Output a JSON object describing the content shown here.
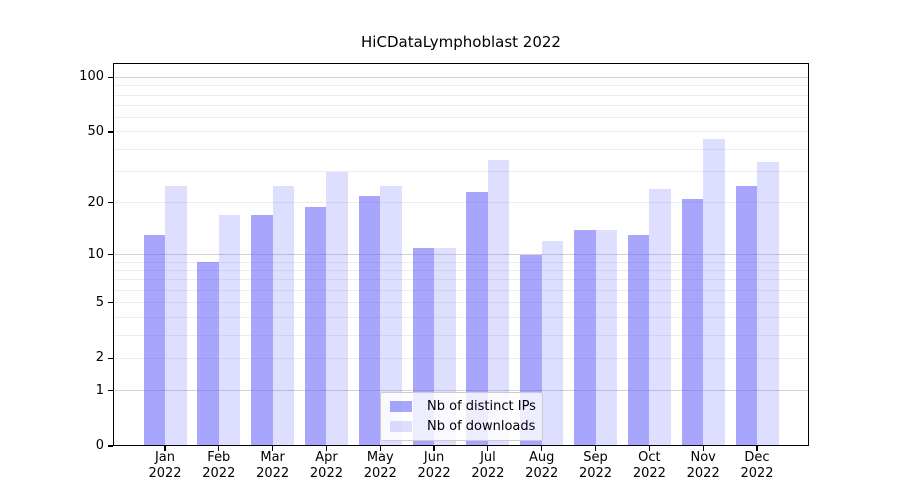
{
  "chart_data": {
    "type": "bar",
    "title": "HiCDataLymphoblast 2022",
    "yscale": "log1p",
    "ylim": [
      0,
      120
    ],
    "grid": true,
    "legend_position": "lower center",
    "categories": [
      "Jan",
      "Feb",
      "Mar",
      "Apr",
      "May",
      "Jun",
      "Jul",
      "Aug",
      "Sep",
      "Oct",
      "Nov",
      "Dec"
    ],
    "category_year": "2022",
    "series": [
      {
        "name": "Nb of distinct IPs",
        "color": "rgba(100,98,250,0.57)",
        "solid_color": "#a8a6f8",
        "values": [
          13,
          9,
          17,
          19,
          22,
          11,
          23,
          10,
          14,
          13,
          21,
          25
        ]
      },
      {
        "name": "Nb of downloads",
        "color": "rgba(100,98,250,0.21)",
        "solid_color": "#dcdbfa",
        "values": [
          25,
          17,
          25,
          30,
          25,
          11,
          35,
          12,
          14,
          24,
          46,
          34
        ]
      }
    ],
    "ytick_labels": [
      "100",
      "50",
      "20",
      "10",
      "5",
      "2",
      "1",
      "0"
    ],
    "ytick_values": [
      100,
      50,
      20,
      10,
      5,
      2,
      1,
      0
    ],
    "major_gridlines": [
      1,
      10,
      100
    ],
    "minor_gridlines": [
      2,
      3,
      4,
      5,
      6,
      7,
      8,
      9,
      20,
      30,
      40,
      50,
      60,
      70,
      80,
      90
    ]
  },
  "colors": {
    "background": "#ffffff",
    "axis": "#000000",
    "text": "#000000",
    "grid_minor": "#ededed",
    "grid_major": "#d2d2d2",
    "legend_border": "#cccccc",
    "legend_bg": "rgba(255,255,255,0.8)"
  }
}
